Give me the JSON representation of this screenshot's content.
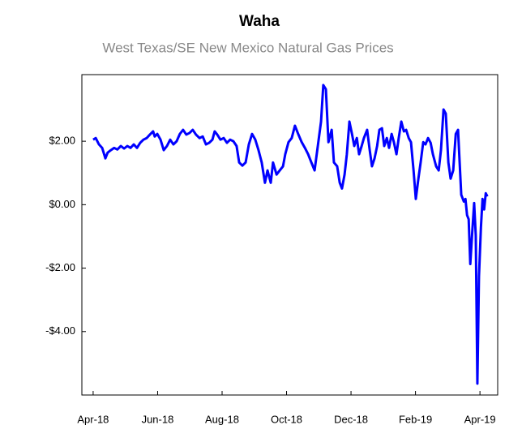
{
  "chart_data": {
    "type": "line",
    "title": "Waha",
    "subtitle": "West Texas/SE New Mexico Natural Gas Prices",
    "x": [
      0,
      0.08,
      0.18,
      0.28,
      0.38,
      0.45,
      0.55,
      0.65,
      0.75,
      0.86,
      0.96,
      1.06,
      1.16,
      1.26,
      1.36,
      1.46,
      1.56,
      1.66,
      1.76,
      1.86,
      1.91,
      1.99,
      2.09,
      2.19,
      2.29,
      2.39,
      2.49,
      2.59,
      2.69,
      2.79,
      2.89,
      2.99,
      3.09,
      3.19,
      3.3,
      3.4,
      3.5,
      3.6,
      3.7,
      3.77,
      3.85,
      3.95,
      4.05,
      4.15,
      4.25,
      4.35,
      4.45,
      4.53,
      4.63,
      4.73,
      4.83,
      4.93,
      5.03,
      5.13,
      5.23,
      5.33,
      5.41,
      5.51,
      5.58,
      5.69,
      5.79,
      5.89,
      5.96,
      6.06,
      6.16,
      6.26,
      6.36,
      6.47,
      6.57,
      6.67,
      6.77,
      6.87,
      6.97,
      7.07,
      7.14,
      7.22,
      7.3,
      7.4,
      7.47,
      7.57,
      7.65,
      7.72,
      7.8,
      7.87,
      7.95,
      8.03,
      8.1,
      8.18,
      8.25,
      8.33,
      8.4,
      8.5,
      8.58,
      8.65,
      8.73,
      8.81,
      8.88,
      8.96,
      9.03,
      9.11,
      9.18,
      9.26,
      9.33,
      9.41,
      9.48,
      9.56,
      9.64,
      9.71,
      9.79,
      9.86,
      9.94,
      10.01,
      10.09,
      10.16,
      10.24,
      10.31,
      10.39,
      10.47,
      10.54,
      10.64,
      10.72,
      10.79,
      10.87,
      10.94,
      11.02,
      11.09,
      11.17,
      11.25,
      11.32,
      11.37,
      11.42,
      11.5,
      11.55,
      11.6,
      11.65,
      11.7,
      11.77,
      11.82,
      11.87,
      11.92,
      11.97,
      12.03,
      12.08,
      12.13,
      12.18,
      12.23
    ],
    "series": [
      {
        "color": "#0000ff",
        "values": [
          2.05,
          2.1,
          1.9,
          1.79,
          1.46,
          1.64,
          1.72,
          1.79,
          1.74,
          1.85,
          1.77,
          1.85,
          1.79,
          1.9,
          1.79,
          1.95,
          2.05,
          2.1,
          2.21,
          2.31,
          2.15,
          2.23,
          2.05,
          1.72,
          1.85,
          2.05,
          1.9,
          2.0,
          2.23,
          2.36,
          2.21,
          2.26,
          2.36,
          2.21,
          2.1,
          2.15,
          1.9,
          1.95,
          2.05,
          2.31,
          2.21,
          2.05,
          2.1,
          1.95,
          2.05,
          2.0,
          1.85,
          1.33,
          1.23,
          1.33,
          1.9,
          2.23,
          2.05,
          1.72,
          1.33,
          0.69,
          1.08,
          0.69,
          1.33,
          0.95,
          1.08,
          1.21,
          1.59,
          1.97,
          2.1,
          2.49,
          2.23,
          1.97,
          1.79,
          1.59,
          1.33,
          1.08,
          1.85,
          2.62,
          3.77,
          3.64,
          1.97,
          2.36,
          1.33,
          1.21,
          0.69,
          0.51,
          0.95,
          1.59,
          2.62,
          2.23,
          1.85,
          2.1,
          1.59,
          1.85,
          2.1,
          2.36,
          1.72,
          1.21,
          1.46,
          1.85,
          2.36,
          2.41,
          1.85,
          2.1,
          1.79,
          2.23,
          1.97,
          1.59,
          2.1,
          2.62,
          2.31,
          2.36,
          2.1,
          1.97,
          1.08,
          0.18,
          0.82,
          1.33,
          1.97,
          1.9,
          2.1,
          1.95,
          1.59,
          1.21,
          1.08,
          1.72,
          3.0,
          2.87,
          1.33,
          0.82,
          1.08,
          2.23,
          2.36,
          1.33,
          0.31,
          0.1,
          0.18,
          -0.33,
          -0.46,
          -1.87,
          -0.72,
          0.05,
          -0.97,
          -5.64,
          -2.26,
          -0.72,
          0.18,
          -0.15,
          0.36,
          0.26
        ]
      }
    ],
    "xlim": [
      -0.35,
      12.55
    ],
    "xticks": [
      {
        "value": 0,
        "label": "Apr-18"
      },
      {
        "value": 2,
        "label": "Jun-18"
      },
      {
        "value": 4,
        "label": "Aug-18"
      },
      {
        "value": 6,
        "label": "Oct-18"
      },
      {
        "value": 8,
        "label": "Dec-18"
      },
      {
        "value": 10,
        "label": "Feb-19"
      },
      {
        "value": 12,
        "label": "Apr-19"
      }
    ],
    "ylim": [
      -6,
      4.1
    ],
    "yticks": [
      {
        "value": 2,
        "label": "$2.00"
      },
      {
        "value": 0,
        "label": "$0.00"
      },
      {
        "value": -2,
        "label": "-$2.00"
      },
      {
        "value": -4,
        "label": "-$4.00"
      }
    ],
    "grid": false
  }
}
